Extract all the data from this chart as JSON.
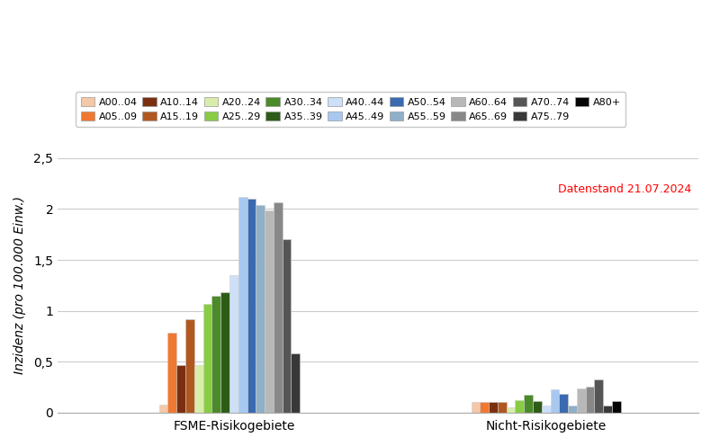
{
  "age_groups": [
    "A00..04",
    "A05..09",
    "A10..14",
    "A15..19",
    "A20..24",
    "A25..29",
    "A30..34",
    "A35..39",
    "A40..44",
    "A45..49",
    "A50..54",
    "A55..59",
    "A60..64",
    "A65..69",
    "A70..74",
    "A75..79",
    "A80+"
  ],
  "colors": [
    "#f5c8a8",
    "#f07830",
    "#7a3010",
    "#b05820",
    "#d8edaa",
    "#88cc44",
    "#4a8a28",
    "#2d5c18",
    "#cce0f8",
    "#a8c8f0",
    "#3a6ab0",
    "#90afc8",
    "#b8b8b8",
    "#888888",
    "#555555",
    "#383838",
    "#050505"
  ],
  "fsme_values": [
    0.08,
    0.78,
    0.47,
    0.92,
    0.47,
    1.07,
    1.15,
    1.18,
    1.35,
    2.12,
    2.1,
    2.04,
    1.99,
    2.07,
    1.7,
    0.58,
    0.0
  ],
  "nicht_values": [
    0.1,
    0.1,
    0.1,
    0.1,
    0.05,
    0.12,
    0.17,
    0.11,
    0.07,
    0.23,
    0.18,
    0.07,
    0.24,
    0.25,
    0.32,
    0.07,
    0.11
  ],
  "group_labels": [
    "FSME-Risikogebiete",
    "Nicht-Risikogebiete"
  ],
  "ylabel": "Inzidenz (pro 100.000 Einw.)",
  "ylim": [
    0,
    2.5
  ],
  "yticks": [
    0,
    0.5,
    1.0,
    1.5,
    2.0,
    2.5
  ],
  "ytick_labels": [
    "0",
    "0,5",
    "1",
    "1,5",
    "2",
    "2,5"
  ],
  "datenstand": "Datenstand 21.07.2024",
  "background_color": "#ffffff",
  "grid_color": "#cccccc"
}
